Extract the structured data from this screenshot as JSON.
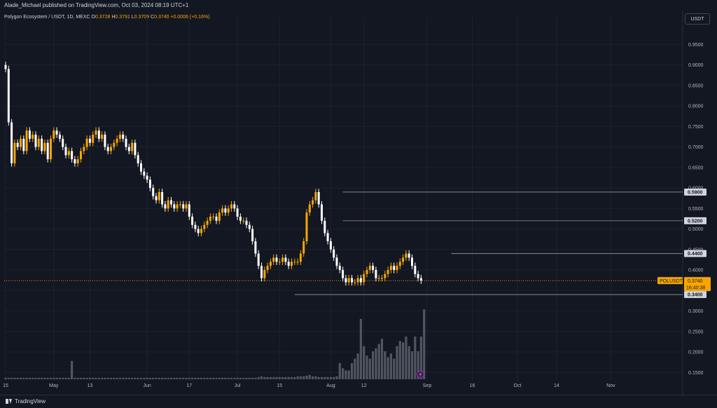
{
  "header": {
    "publisher_text": "Alade_Michael published on TradingView.com, Oct 03, 2024 08:19 UTC+1",
    "symbol_line": "Polygon Ecosystem / USDT, 1D, MEXC",
    "o_label": "O",
    "o_value": "0.3728",
    "h_label": "H",
    "h_value": "0.3791",
    "l_label": "L",
    "l_value": "0.3709",
    "c_label": "C",
    "c_value": "0.3740",
    "change_value": "+0.0006 (+0.16%)",
    "currency_button": "USDT"
  },
  "footer": {
    "logo_text": "TradingView"
  },
  "colors": {
    "background": "#131722",
    "up": "#f7a600",
    "down": "#ffffff",
    "grid": "#1e222d",
    "axis_text": "#b2b5be",
    "label_bg": "#d1d4dc",
    "price_tag": "#f7a600"
  },
  "chart_data": {
    "type": "candlestick",
    "title": "Polygon Ecosystem / USDT, 1D, MEXC",
    "ylim": [
      0.13,
      0.99
    ],
    "y_ticks": [
      "0.9500",
      "0.9000",
      "0.8500",
      "0.8000",
      "0.7500",
      "0.7000",
      "0.6500",
      "0.6000",
      "0.5500",
      "0.5000",
      "0.4500",
      "0.4000",
      "0.3500",
      "0.3000",
      "0.2500",
      "0.2000",
      "0.1500"
    ],
    "x_ticks": [
      {
        "label": "15",
        "x": 0
      },
      {
        "label": "May",
        "x": 16
      },
      {
        "label": "13",
        "x": 28
      },
      {
        "label": "Jun",
        "x": 47
      },
      {
        "label": "17",
        "x": 61
      },
      {
        "label": "Jul",
        "x": 77
      },
      {
        "label": "15",
        "x": 91
      },
      {
        "label": "Aug",
        "x": 108
      },
      {
        "label": "12",
        "x": 119
      },
      {
        "label": "Sep",
        "x": 140
      },
      {
        "label": "16",
        "x": 155
      },
      {
        "label": "Oct",
        "x": 170
      },
      {
        "label": "14",
        "x": 183
      },
      {
        "label": "Nov",
        "x": 201
      }
    ],
    "candles_close": [
      0.89,
      0.76,
      0.66,
      0.71,
      0.7,
      0.72,
      0.69,
      0.74,
      0.72,
      0.73,
      0.7,
      0.72,
      0.69,
      0.71,
      0.67,
      0.72,
      0.74,
      0.73,
      0.72,
      0.7,
      0.68,
      0.69,
      0.67,
      0.66,
      0.67,
      0.69,
      0.7,
      0.72,
      0.71,
      0.73,
      0.74,
      0.72,
      0.73,
      0.7,
      0.69,
      0.7,
      0.71,
      0.72,
      0.73,
      0.72,
      0.7,
      0.69,
      0.71,
      0.68,
      0.66,
      0.64,
      0.63,
      0.62,
      0.6,
      0.58,
      0.57,
      0.59,
      0.56,
      0.55,
      0.57,
      0.56,
      0.55,
      0.56,
      0.56,
      0.55,
      0.56,
      0.53,
      0.51,
      0.5,
      0.49,
      0.5,
      0.51,
      0.52,
      0.53,
      0.53,
      0.52,
      0.54,
      0.55,
      0.54,
      0.55,
      0.56,
      0.55,
      0.53,
      0.52,
      0.52,
      0.51,
      0.5,
      0.47,
      0.44,
      0.41,
      0.38,
      0.4,
      0.41,
      0.42,
      0.43,
      0.42,
      0.42,
      0.43,
      0.42,
      0.41,
      0.42,
      0.42,
      0.42,
      0.44,
      0.47,
      0.54,
      0.56,
      0.57,
      0.59,
      0.56,
      0.52,
      0.49,
      0.47,
      0.45,
      0.43,
      0.41,
      0.4,
      0.38,
      0.37,
      0.38,
      0.37,
      0.37,
      0.38,
      0.37,
      0.39,
      0.4,
      0.41,
      0.4,
      0.38,
      0.38,
      0.38,
      0.39,
      0.4,
      0.41,
      0.4,
      0.41,
      0.42,
      0.43,
      0.44,
      0.43,
      0.41,
      0.39,
      0.38,
      0.374
    ],
    "volume_relative": [
      0.02,
      0.02,
      0.02,
      0.02,
      0.02,
      0.02,
      0.02,
      0.02,
      0.02,
      0.02,
      0.02,
      0.02,
      0.02,
      0.02,
      0.02,
      0.02,
      0.02,
      0.02,
      0.02,
      0.02,
      0.02,
      0.02,
      0.25,
      0.02,
      0.02,
      0.02,
      0.02,
      0.02,
      0.02,
      0.02,
      0.02,
      0.02,
      0.02,
      0.02,
      0.02,
      0.02,
      0.02,
      0.02,
      0.02,
      0.02,
      0.02,
      0.02,
      0.02,
      0.02,
      0.02,
      0.02,
      0.02,
      0.02,
      0.02,
      0.02,
      0.02,
      0.02,
      0.02,
      0.02,
      0.02,
      0.02,
      0.02,
      0.02,
      0.02,
      0.02,
      0.02,
      0.02,
      0.02,
      0.02,
      0.02,
      0.02,
      0.02,
      0.02,
      0.02,
      0.02,
      0.02,
      0.02,
      0.02,
      0.02,
      0.02,
      0.02,
      0.02,
      0.02,
      0.02,
      0.02,
      0.02,
      0.02,
      0.02,
      0.02,
      0.03,
      0.04,
      0.03,
      0.03,
      0.03,
      0.03,
      0.03,
      0.03,
      0.03,
      0.03,
      0.03,
      0.03,
      0.03,
      0.04,
      0.04,
      0.04,
      0.05,
      0.06,
      0.04,
      0.04,
      0.03,
      0.03,
      0.03,
      0.03,
      0.03,
      0.03,
      0.04,
      0.22,
      0.15,
      0.12,
      0.12,
      0.22,
      0.28,
      0.35,
      0.82,
      0.45,
      0.32,
      0.28,
      0.38,
      0.42,
      0.48,
      0.55,
      0.38,
      0.3,
      0.35,
      0.28,
      0.45,
      0.52,
      0.5,
      0.58,
      0.45,
      0.38,
      0.58,
      0.38,
      0.58,
      0.95
    ],
    "horizontal_levels": [
      {
        "price": 0.59,
        "label": "0.5900",
        "start_x": 112
      },
      {
        "price": 0.52,
        "label": "0.5200",
        "start_x": 112
      },
      {
        "price": 0.44,
        "label": "0.4400",
        "start_x": 148
      },
      {
        "price": 0.34,
        "label": "0.3400",
        "start_x": 96
      }
    ],
    "current": {
      "symbol": "POLUSDT",
      "price": 0.374,
      "price_label": "0.3740",
      "countdown": "16:40:38"
    }
  }
}
